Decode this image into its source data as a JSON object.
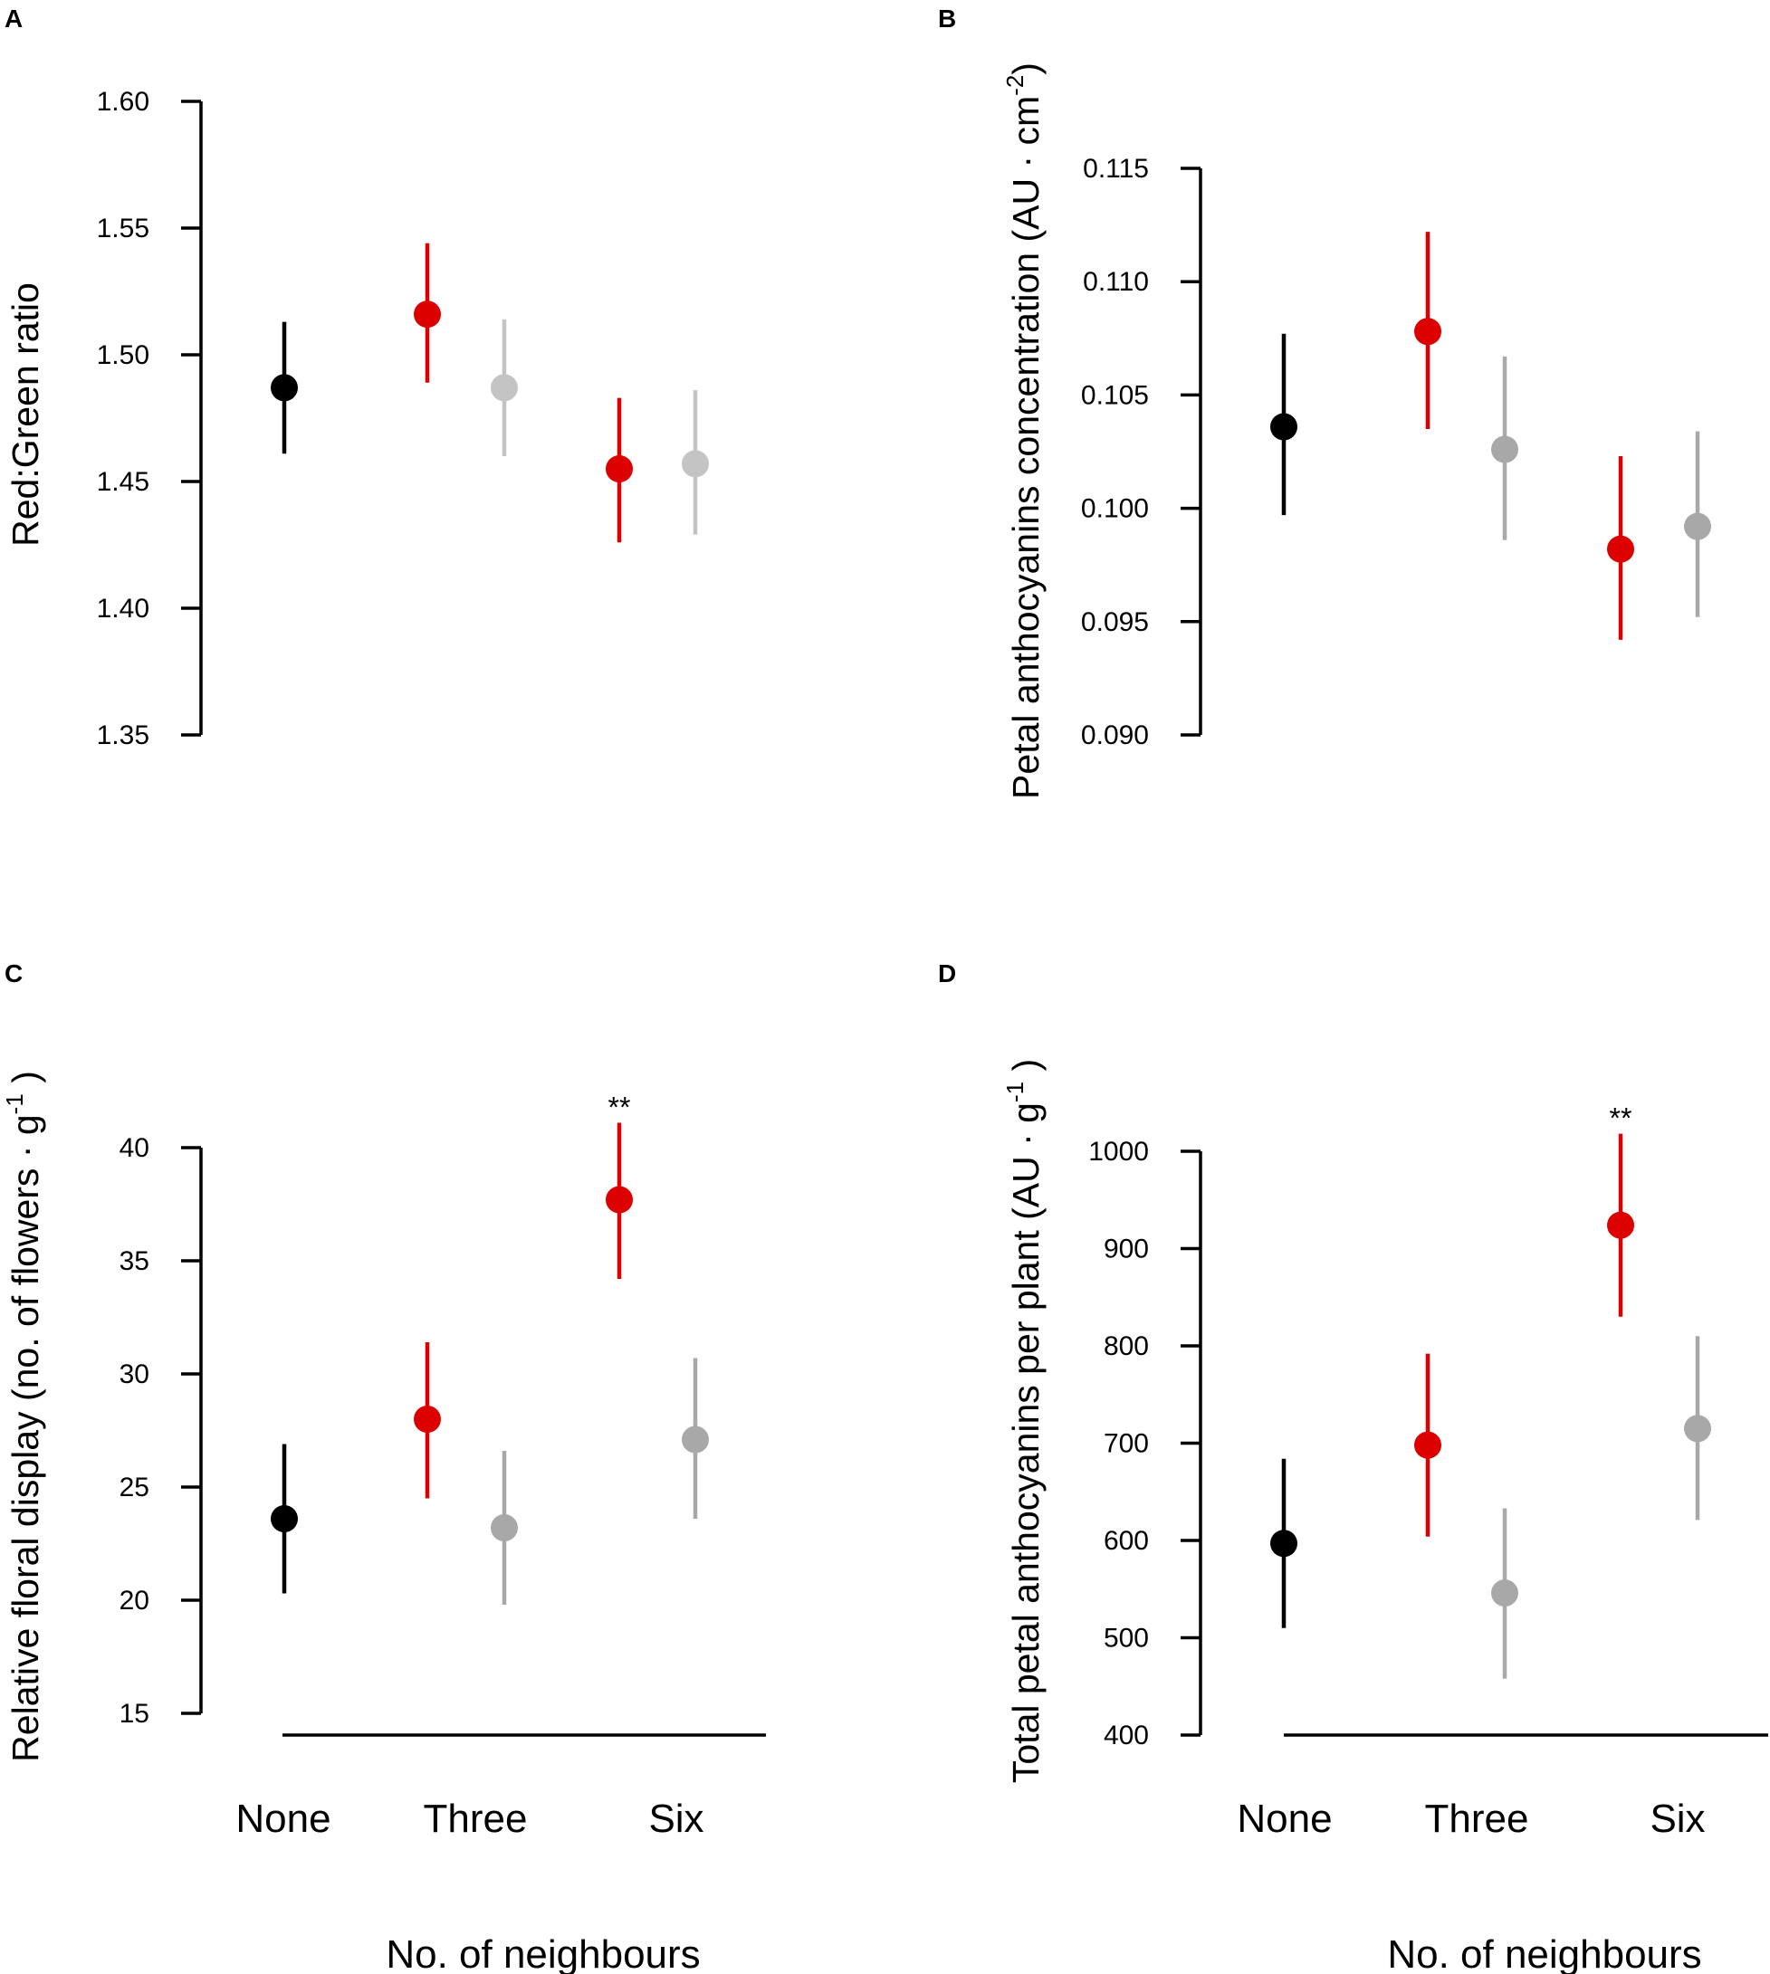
{
  "colors": {
    "none": "#000000",
    "red": "#dd0000",
    "grey_light": "#c4c4c4",
    "grey": "#a8a8a8"
  },
  "shared": {
    "categories": [
      "None",
      "Three",
      "Six"
    ],
    "xlabel": "No. of neighbours"
  },
  "chart_data": [
    {
      "panel": "A",
      "type": "scatter",
      "ylabel": "Red:Green ratio",
      "ylim": [
        1.35,
        1.6
      ],
      "yticks": [
        "1.35",
        "1.40",
        "1.45",
        "1.50",
        "1.55",
        "1.60"
      ],
      "x_axis_line": false,
      "points": [
        {
          "category": "None",
          "color": "none",
          "mean": 1.487,
          "lower": 1.461,
          "upper": 1.513
        },
        {
          "category": "Three",
          "color": "red",
          "mean": 1.516,
          "lower": 1.489,
          "upper": 1.544
        },
        {
          "category": "Three",
          "color": "grey_light",
          "mean": 1.487,
          "lower": 1.46,
          "upper": 1.514
        },
        {
          "category": "Six",
          "color": "red",
          "mean": 1.455,
          "lower": 1.426,
          "upper": 1.483
        },
        {
          "category": "Six",
          "color": "grey_light",
          "mean": 1.457,
          "lower": 1.429,
          "upper": 1.486
        }
      ]
    },
    {
      "panel": "B",
      "type": "scatter",
      "ylabel_parts": [
        "Petal anthocyanins concentration (AU · cm",
        "-2",
        ")"
      ],
      "ylim": [
        0.09,
        0.115
      ],
      "yticks": [
        "0.090",
        "0.095",
        "0.100",
        "0.105",
        "0.110",
        "0.115"
      ],
      "x_axis_line": false,
      "points": [
        {
          "category": "None",
          "color": "none",
          "mean": 0.1036,
          "lower": 0.0997,
          "upper": 0.1077
        },
        {
          "category": "Three",
          "color": "red",
          "mean": 0.1078,
          "lower": 0.1035,
          "upper": 0.1122
        },
        {
          "category": "Three",
          "color": "grey",
          "mean": 0.1026,
          "lower": 0.0986,
          "upper": 0.1067
        },
        {
          "category": "Six",
          "color": "red",
          "mean": 0.0982,
          "lower": 0.0942,
          "upper": 0.1023
        },
        {
          "category": "Six",
          "color": "grey",
          "mean": 0.0992,
          "lower": 0.0952,
          "upper": 0.1034
        }
      ]
    },
    {
      "panel": "C",
      "type": "scatter",
      "ylabel_parts": [
        "Relative floral display  (no. of flowers · g",
        "-1",
        " )"
      ],
      "ylim": [
        15,
        40
      ],
      "yticks": [
        "15",
        "20",
        "25",
        "30",
        "35",
        "40"
      ],
      "x_axis_line": true,
      "annotation": "**",
      "points": [
        {
          "category": "None",
          "color": "none",
          "mean": 23.6,
          "lower": 20.3,
          "upper": 26.9
        },
        {
          "category": "Three",
          "color": "red",
          "mean": 28.0,
          "lower": 24.5,
          "upper": 31.4
        },
        {
          "category": "Three",
          "color": "grey",
          "mean": 23.2,
          "lower": 19.8,
          "upper": 26.6
        },
        {
          "category": "Six",
          "color": "red",
          "mean": 37.7,
          "lower": 34.2,
          "upper": 41.1,
          "annotated": true
        },
        {
          "category": "Six",
          "color": "grey",
          "mean": 27.1,
          "lower": 23.6,
          "upper": 30.7
        }
      ]
    },
    {
      "panel": "D",
      "type": "scatter",
      "ylabel_parts": [
        "Total petal anthocyanins per plant (AU · g",
        "-1",
        " )"
      ],
      "ylim": [
        400,
        1000
      ],
      "yticks": [
        "400",
        "500",
        "600",
        "700",
        "800",
        "900",
        "1000"
      ],
      "x_axis_line": true,
      "annotation": "**",
      "points": [
        {
          "category": "None",
          "color": "none",
          "mean": 597,
          "lower": 510,
          "upper": 684
        },
        {
          "category": "Three",
          "color": "red",
          "mean": 698,
          "lower": 604,
          "upper": 792
        },
        {
          "category": "Three",
          "color": "grey",
          "mean": 546,
          "lower": 458,
          "upper": 633
        },
        {
          "category": "Six",
          "color": "red",
          "mean": 924,
          "lower": 830,
          "upper": 1018,
          "annotated": true
        },
        {
          "category": "Six",
          "color": "grey",
          "mean": 715,
          "lower": 621,
          "upper": 810
        }
      ]
    }
  ]
}
